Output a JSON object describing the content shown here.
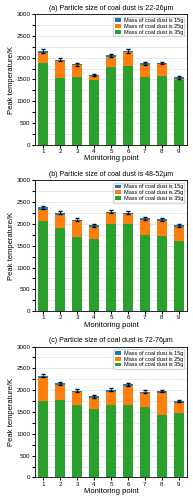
{
  "chart_data": [
    {
      "type": "bar",
      "title": "(a) Particle size of coal dust is 22-26μm",
      "xlabel": "Monitoring point",
      "ylabel": "Peak temperature/K",
      "x": [
        1,
        2,
        3,
        4,
        5,
        6,
        7,
        8,
        9
      ],
      "xlim": [
        0.5,
        9.5
      ],
      "xticks": [
        1,
        2,
        3,
        4,
        5,
        6,
        7,
        8,
        9
      ],
      "ylim": [
        0,
        3000
      ],
      "yticks": [
        0,
        {
          "value": 250,
          "label": ""
        },
        500,
        {
          "value": 750,
          "label": ""
        },
        1000,
        {
          "value": 1250,
          "label": ""
        },
        1500,
        {
          "value": 1750,
          "label": ""
        },
        2000,
        {
          "value": 2250,
          "label": ""
        },
        2500,
        {
          "value": 2750,
          "label": ""
        },
        3000
      ],
      "grid": "y",
      "legend": "upper right",
      "series": [
        {
          "name": "Mass of coal dust is 15g",
          "values": [
            2150,
            1950,
            1850,
            1600,
            2050,
            2150,
            1870,
            1880,
            1550
          ],
          "errors": [
            40,
            35,
            30,
            30,
            40,
            40,
            30,
            30,
            30
          ]
        },
        {
          "name": "Mass of coal dust is 25g",
          "values": [
            2100,
            1920,
            1830,
            1570,
            2020,
            2120,
            1840,
            1850,
            1520
          ]
        },
        {
          "name": "Mass of coal dust is 35g",
          "values": [
            1870,
            1540,
            1550,
            1480,
            1780,
            1820,
            1560,
            1570,
            1480
          ]
        }
      ]
    },
    {
      "type": "bar",
      "title": "(b) Particle size of coal dust is 48-52μm",
      "xlabel": "Monitoring point",
      "ylabel": "Peak temperature/K",
      "x": [
        1,
        2,
        3,
        4,
        5,
        6,
        7,
        8,
        9
      ],
      "xlim": [
        0.5,
        9.5
      ],
      "xticks": [
        1,
        2,
        3,
        4,
        5,
        6,
        7,
        8,
        9
      ],
      "ylim": [
        0,
        3000
      ],
      "yticks": [
        0,
        {
          "value": 250,
          "label": ""
        },
        500,
        {
          "value": 750,
          "label": ""
        },
        1000,
        {
          "value": 1250,
          "label": ""
        },
        1500,
        {
          "value": 1750,
          "label": ""
        },
        2000,
        {
          "value": 2250,
          "label": ""
        },
        2500,
        {
          "value": 2750,
          "label": ""
        },
        3000
      ],
      "grid": "y",
      "legend": "upper right",
      "series": [
        {
          "name": "Mass of coal dust is 15g",
          "values": [
            2380,
            2260,
            2100,
            1970,
            2280,
            2260,
            2130,
            2110,
            1970
          ],
          "errors": [
            40,
            35,
            35,
            30,
            40,
            40,
            35,
            35,
            30
          ]
        },
        {
          "name": "Mass of coal dust is 25g",
          "values": [
            2320,
            2210,
            2060,
            1930,
            2240,
            2220,
            2090,
            2070,
            1930
          ]
        },
        {
          "name": "Mass of coal dust is 35g",
          "values": [
            2060,
            1900,
            1700,
            1650,
            1990,
            1990,
            1740,
            1730,
            1600
          ]
        }
      ]
    },
    {
      "type": "bar",
      "title": "(c) Particle size of coal dust is 72-76μm",
      "xlabel": "Monitoring point",
      "ylabel": "Peak temperature/K",
      "x": [
        1,
        2,
        3,
        4,
        5,
        6,
        7,
        8,
        9
      ],
      "xlim": [
        0.5,
        9.5
      ],
      "xticks": [
        1,
        2,
        3,
        4,
        5,
        6,
        7,
        8,
        9
      ],
      "ylim": [
        0,
        3000
      ],
      "yticks": [
        0,
        {
          "value": 250,
          "label": ""
        },
        500,
        {
          "value": 750,
          "label": ""
        },
        1000,
        {
          "value": 1250,
          "label": ""
        },
        1500,
        {
          "value": 1750,
          "label": ""
        },
        2000,
        {
          "value": 2250,
          "label": ""
        },
        2500,
        {
          "value": 2750,
          "label": ""
        },
        3000
      ],
      "grid": "y",
      "legend": "upper right",
      "series": [
        {
          "name": "Mass of coal dust is 15g",
          "values": [
            2330,
            2160,
            1990,
            1860,
            2010,
            2140,
            1970,
            1980,
            1750
          ],
          "errors": [
            35,
            30,
            30,
            28,
            32,
            35,
            30,
            30,
            28
          ]
        },
        {
          "name": "Mass of coal dust is 25g",
          "values": [
            2280,
            2120,
            1950,
            1820,
            1970,
            2100,
            1930,
            1940,
            1710
          ]
        },
        {
          "name": "Mass of coal dust is 35g",
          "values": [
            1760,
            1770,
            1660,
            1560,
            1660,
            1660,
            1610,
            1440,
            1480
          ]
        }
      ]
    }
  ]
}
